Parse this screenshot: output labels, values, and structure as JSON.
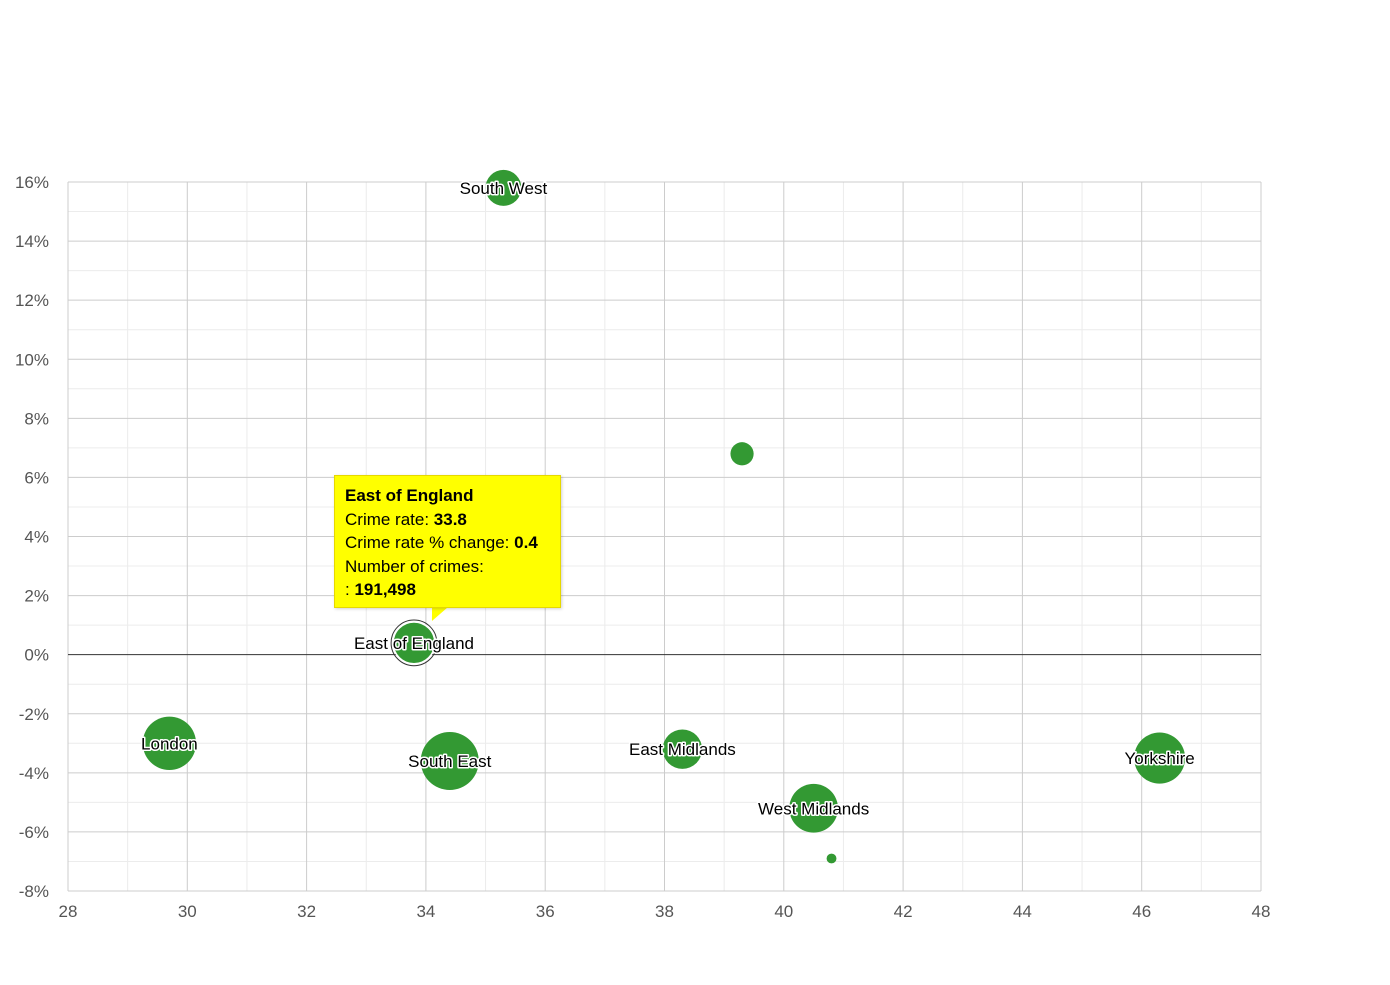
{
  "chart_data": {
    "type": "scatter",
    "subtype": "bubble",
    "xlim": [
      28,
      48
    ],
    "ylim": [
      -8,
      16
    ],
    "x_ticks": [
      "28",
      "30",
      "32",
      "34",
      "36",
      "38",
      "40",
      "42",
      "44",
      "46",
      "48"
    ],
    "y_ticks": [
      "-8%",
      "-6%",
      "-4%",
      "-2%",
      "0%",
      "2%",
      "4%",
      "6%",
      "8%",
      "10%",
      "12%",
      "14%",
      "16%"
    ],
    "y_tick_values": [
      -8,
      -6,
      -4,
      -2,
      0,
      2,
      4,
      6,
      8,
      10,
      12,
      14,
      16
    ],
    "x_tick_values": [
      28,
      30,
      32,
      34,
      36,
      38,
      40,
      42,
      44,
      46,
      48
    ],
    "grid": true,
    "bubble_color": "#339933",
    "points": [
      {
        "label": "South West",
        "x": 35.3,
        "y": 15.8,
        "r_rel": 0.62
      },
      {
        "label": "",
        "x": 39.3,
        "y": 6.8,
        "r_rel": 0.4
      },
      {
        "label": "East of England",
        "x": 33.8,
        "y": 0.4,
        "r_rel": 0.72,
        "highlighted": true
      },
      {
        "label": "London",
        "x": 29.7,
        "y": -3.0,
        "r_rel": 0.92
      },
      {
        "label": "South East",
        "x": 34.4,
        "y": -3.6,
        "r_rel": 1.0
      },
      {
        "label": "East Midlands",
        "x": 38.3,
        "y": -3.2,
        "r_rel": 0.68
      },
      {
        "label": "West Midlands",
        "x": 40.5,
        "y": -5.2,
        "r_rel": 0.84
      },
      {
        "label": "",
        "x": 40.8,
        "y": -6.9,
        "r_rel": 0.17
      },
      {
        "label": "Yorkshire",
        "x": 46.3,
        "y": -3.5,
        "r_rel": 0.88
      }
    ]
  },
  "tooltip": {
    "title": "East of England",
    "crime_rate_label": "Crime rate: ",
    "crime_rate_value": "33.8",
    "change_label": "Crime rate % change: ",
    "change_value": "0.4",
    "crimes_label": "Number of crimes:",
    "crimes_prefix": ": ",
    "crimes_value": "191,498"
  }
}
